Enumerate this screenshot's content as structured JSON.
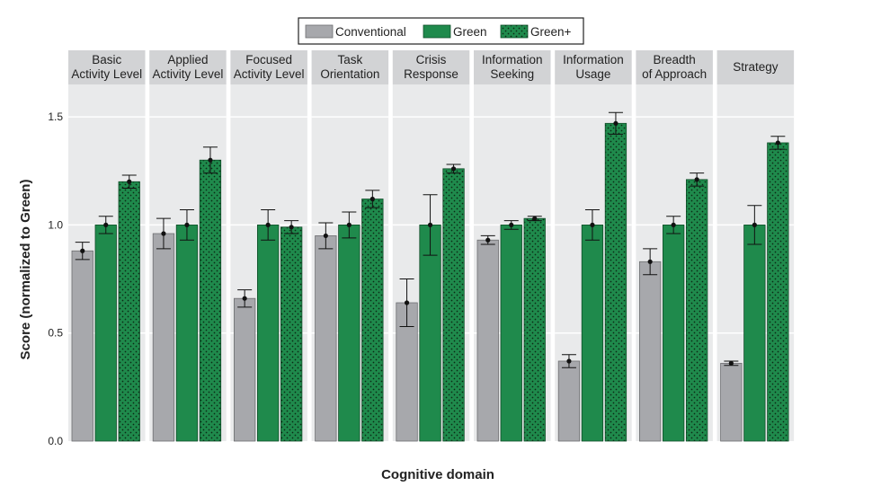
{
  "chart_data": {
    "type": "bar",
    "xlabel": "Cognitive domain",
    "ylabel": "Score (normalized to Green)",
    "ylim": [
      0,
      1.65
    ],
    "yticks": [
      "0.0",
      "0.5",
      "1.0",
      "1.5"
    ],
    "grid": true,
    "legend_position": "top-center",
    "categories": [
      [
        "Basic",
        "Activity Level"
      ],
      [
        "Applied",
        "Activity Level"
      ],
      [
        "Focused",
        "Activity Level"
      ],
      [
        "Task",
        "Orientation"
      ],
      [
        "Crisis",
        "Response"
      ],
      [
        "Information",
        "Seeking"
      ],
      [
        "Information",
        "Usage"
      ],
      [
        "Breadth",
        "of Approach"
      ],
      [
        "Strategy"
      ]
    ],
    "series": [
      {
        "name": "Conventional",
        "color": "#a7a8ac",
        "pattern": "solid",
        "values": [
          0.88,
          0.96,
          0.66,
          0.95,
          0.64,
          0.93,
          0.37,
          0.83,
          0.36
        ],
        "err": [
          0.04,
          0.07,
          0.04,
          0.06,
          0.11,
          0.02,
          0.03,
          0.06,
          0.01
        ]
      },
      {
        "name": "Green",
        "color": "#1f8a4c",
        "pattern": "solid",
        "values": [
          1.0,
          1.0,
          1.0,
          1.0,
          1.0,
          1.0,
          1.0,
          1.0,
          1.0
        ],
        "err": [
          0.04,
          0.07,
          0.07,
          0.06,
          0.14,
          0.02,
          0.07,
          0.04,
          0.09
        ]
      },
      {
        "name": "Green+",
        "color": "#1f8a4c",
        "pattern": "dots",
        "values": [
          1.2,
          1.3,
          0.99,
          1.12,
          1.26,
          1.03,
          1.47,
          1.21,
          1.38
        ],
        "err": [
          0.03,
          0.06,
          0.03,
          0.04,
          0.02,
          0.01,
          0.05,
          0.03,
          0.03
        ]
      }
    ]
  }
}
